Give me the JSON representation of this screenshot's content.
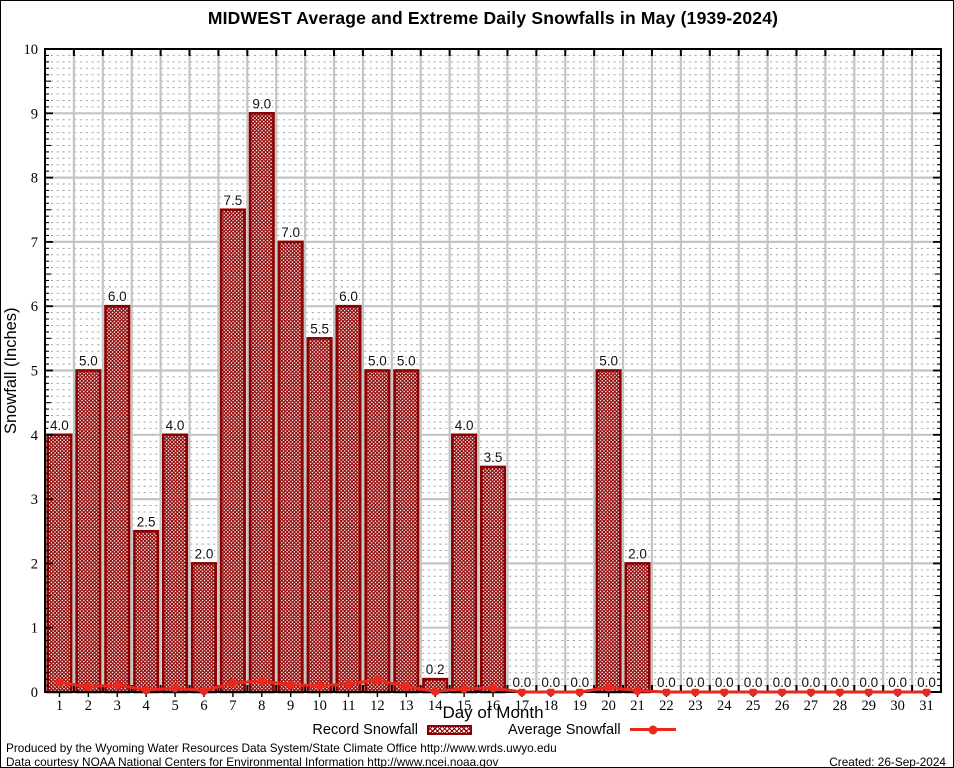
{
  "title": "MIDWEST Average and Extreme Daily Snowfalls in May (1939-2024)",
  "axes": {
    "y_label": "Snowfall (Inches)",
    "x_label": "Day of Month",
    "y_ticks": [
      0,
      1,
      2,
      3,
      4,
      5,
      6,
      7,
      8,
      9,
      10
    ],
    "x_ticks": [
      1,
      2,
      3,
      4,
      5,
      6,
      7,
      8,
      9,
      10,
      11,
      12,
      13,
      14,
      15,
      16,
      17,
      18,
      19,
      20,
      21,
      22,
      23,
      24,
      25,
      26,
      27,
      28,
      29,
      30,
      31
    ]
  },
  "legend": {
    "record_label": "Record Snowfall",
    "average_label": "Average Snowfall"
  },
  "footer": {
    "line1": "Produced by the Wyoming Water Resources Data System/State Climate Office http://www.wrds.uwyo.edu",
    "line2": "Data courtesy NOAA National Centers for Environmental Information http://www.ncei.noaa.gov",
    "created": "Created: 26-Sep-2024"
  },
  "colors": {
    "bar_border": "#8b0000",
    "bar_hatch": "#8b0000",
    "avg_line": "#e9281e",
    "grid_major": "#c4c4c4",
    "grid_minor": "#a6a6a6",
    "axis_frame": "#000000",
    "label_text": "#111111"
  },
  "chart_data": {
    "type": "bar",
    "title": "MIDWEST Average and Extreme Daily Snowfalls in May (1939-2024)",
    "xlabel": "Day of Month",
    "ylabel": "Snowfall (Inches)",
    "ylim": [
      0,
      10
    ],
    "grid": "major-solid, minor-dashed every 0.1",
    "legend_position": "bottom-center",
    "categories": [
      1,
      2,
      3,
      4,
      5,
      6,
      7,
      8,
      9,
      10,
      11,
      12,
      13,
      14,
      15,
      16,
      17,
      18,
      19,
      20,
      21,
      22,
      23,
      24,
      25,
      26,
      27,
      28,
      29,
      30,
      31
    ],
    "series": [
      {
        "name": "Record Snowfall",
        "type": "bar",
        "values": [
          4.0,
          5.0,
          6.0,
          2.5,
          4.0,
          2.0,
          7.5,
          9.0,
          7.0,
          5.5,
          6.0,
          5.0,
          5.0,
          0.2,
          4.0,
          3.5,
          0.0,
          0.0,
          0.0,
          5.0,
          2.0,
          0.0,
          0.0,
          0.0,
          0.0,
          0.0,
          0.0,
          0.0,
          0.0,
          0.0,
          0.0
        ],
        "value_labels": [
          "4.0",
          "5.0",
          "6.0",
          "2.5",
          "4.0",
          "2.0",
          "7.5",
          "9.0",
          "7.0",
          "5.5",
          "6.0",
          "5.0",
          "5.0",
          "0.2",
          "4.0",
          "3.5",
          "0.0",
          "0.0",
          "0.0",
          "5.0",
          "2.0",
          "0.0",
          "0.0",
          "0.0",
          "0.0",
          "0.0",
          "0.0",
          "0.0",
          "0.0",
          "0.0",
          "0.0"
        ]
      },
      {
        "name": "Average Snowfall",
        "type": "line",
        "values": [
          0.15,
          0.08,
          0.11,
          0.03,
          0.06,
          0.02,
          0.14,
          0.17,
          0.11,
          0.1,
          0.12,
          0.19,
          0.08,
          0.01,
          0.05,
          0.06,
          0.0,
          0.0,
          0.0,
          0.07,
          0.02,
          0.0,
          0.0,
          0.0,
          0.0,
          0.0,
          0.0,
          0.0,
          0.0,
          0.0,
          0.0
        ]
      }
    ]
  }
}
